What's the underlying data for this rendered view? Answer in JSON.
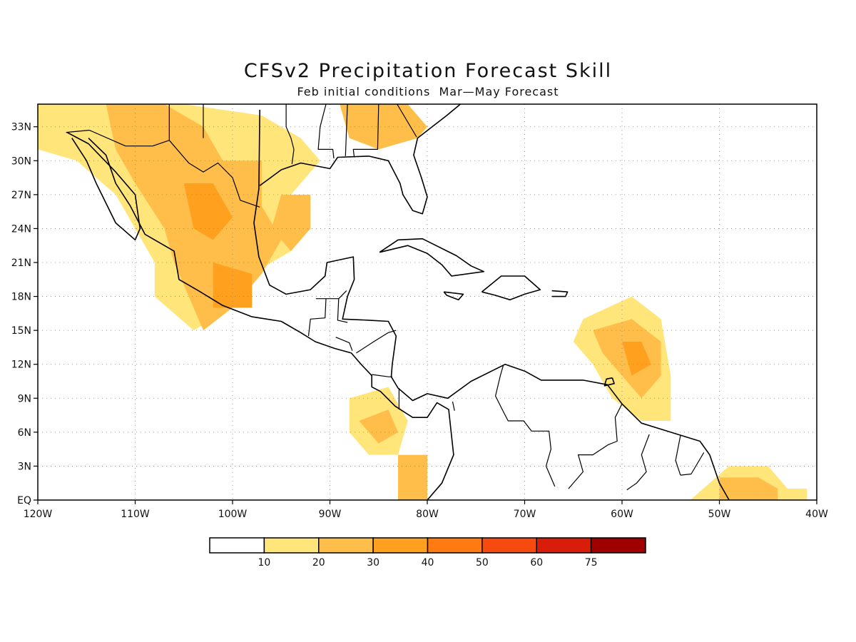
{
  "title": "CFSv2 Precipitation Forecast Skill",
  "subtitle": "Feb initial conditions  Mar—May Forecast",
  "axes": {
    "lat_labels": [
      "33N",
      "30N",
      "27N",
      "24N",
      "21N",
      "18N",
      "15N",
      "12N",
      "9N",
      "6N",
      "3N",
      "EQ"
    ],
    "lon_labels": [
      "120W",
      "110W",
      "100W",
      "90W",
      "80W",
      "70W",
      "60W",
      "50W",
      "40W"
    ]
  },
  "colorbar": {
    "labels": [
      "10",
      "20",
      "30",
      "40",
      "50",
      "60",
      "75"
    ],
    "colors": [
      "#ffffff",
      "#ffe57a",
      "#ffbe4a",
      "#ffa11f",
      "#ff7a10",
      "#f74a0e",
      "#d81e0a",
      "#a00000"
    ]
  },
  "chart_data": {
    "type": "map",
    "extent": {
      "lon": [
        -120,
        -40
      ],
      "lat": [
        0,
        35
      ]
    },
    "grid": true,
    "levels": [
      10,
      20,
      30,
      40,
      50,
      60,
      75
    ],
    "regions": [
      {
        "level": 10,
        "points": [
          [
            -120,
            35
          ],
          [
            -105,
            35
          ],
          [
            -97,
            34
          ],
          [
            -93,
            32
          ],
          [
            -91,
            30
          ],
          [
            -94,
            27
          ],
          [
            -92,
            25
          ],
          [
            -94,
            22
          ],
          [
            -100,
            19
          ],
          [
            -102,
            16
          ],
          [
            -104,
            15
          ],
          [
            -108,
            18
          ],
          [
            -108,
            21
          ],
          [
            -110,
            24
          ],
          [
            -112,
            27
          ],
          [
            -116,
            30
          ],
          [
            -120,
            31
          ]
        ]
      },
      {
        "level": 20,
        "points": [
          [
            -113,
            35
          ],
          [
            -107,
            35
          ],
          [
            -103,
            33
          ],
          [
            -101,
            30
          ],
          [
            -97,
            30
          ],
          [
            -97,
            26
          ],
          [
            -95,
            23
          ],
          [
            -97,
            20
          ],
          [
            -100,
            17
          ],
          [
            -103,
            15
          ],
          [
            -104,
            17
          ],
          [
            -106,
            21
          ],
          [
            -107,
            24
          ],
          [
            -110,
            28
          ],
          [
            -112,
            31
          ]
        ]
      },
      {
        "level": 20,
        "points": [
          [
            -95,
            27
          ],
          [
            -92,
            27
          ],
          [
            -92,
            24
          ],
          [
            -94,
            22
          ],
          [
            -96,
            24
          ]
        ]
      },
      {
        "level": 20,
        "points": [
          [
            -89,
            35
          ],
          [
            -82,
            35
          ],
          [
            -80,
            33
          ],
          [
            -81,
            32
          ],
          [
            -85,
            31
          ],
          [
            -88,
            32
          ]
        ]
      },
      {
        "level": 30,
        "points": [
          [
            -105,
            28
          ],
          [
            -102,
            28
          ],
          [
            -100,
            25
          ],
          [
            -102,
            23
          ],
          [
            -104,
            24
          ]
        ]
      },
      {
        "level": 30,
        "points": [
          [
            -102,
            21
          ],
          [
            -98,
            20
          ],
          [
            -98,
            17
          ],
          [
            -102,
            17
          ]
        ]
      },
      {
        "level": 10,
        "points": [
          [
            -64,
            16
          ],
          [
            -59,
            18
          ],
          [
            -56,
            16
          ],
          [
            -55,
            11
          ],
          [
            -55,
            7
          ],
          [
            -58,
            7
          ],
          [
            -61,
            9
          ],
          [
            -63,
            12
          ],
          [
            -65,
            14
          ]
        ]
      },
      {
        "level": 20,
        "points": [
          [
            -63,
            15
          ],
          [
            -59,
            16
          ],
          [
            -56,
            14
          ],
          [
            -56,
            11
          ],
          [
            -58,
            9
          ],
          [
            -60,
            11
          ],
          [
            -62,
            13
          ]
        ]
      },
      {
        "level": 30,
        "points": [
          [
            -60,
            14
          ],
          [
            -58,
            14
          ],
          [
            -57,
            12
          ],
          [
            -59,
            11
          ]
        ]
      },
      {
        "level": 10,
        "points": [
          [
            -88,
            9
          ],
          [
            -84,
            10
          ],
          [
            -82,
            7
          ],
          [
            -83,
            4
          ],
          [
            -86,
            4
          ],
          [
            -88,
            6
          ]
        ]
      },
      {
        "level": 20,
        "points": [
          [
            -87,
            7
          ],
          [
            -84,
            8
          ],
          [
            -83,
            6
          ],
          [
            -85,
            5
          ]
        ]
      },
      {
        "level": 10,
        "points": [
          [
            -53,
            0
          ],
          [
            -49,
            3
          ],
          [
            -45,
            3
          ],
          [
            -43,
            1
          ],
          [
            -41,
            1
          ],
          [
            -41,
            0
          ]
        ]
      },
      {
        "level": 20,
        "points": [
          [
            -50,
            2
          ],
          [
            -46,
            2
          ],
          [
            -44,
            1
          ],
          [
            -44,
            0
          ],
          [
            -50,
            0
          ]
        ]
      },
      {
        "level": 20,
        "points": [
          [
            -83,
            4
          ],
          [
            -80,
            4
          ],
          [
            -80,
            0
          ],
          [
            -83,
            0
          ]
        ]
      }
    ],
    "title": "CFSv2 Precipitation Forecast Skill",
    "subtitle": "Feb initial conditions  Mar—May Forecast",
    "xlabel": "",
    "ylabel": ""
  },
  "coastlines": [
    [
      [
        -117,
        32.5
      ],
      [
        -114.8,
        31.5
      ],
      [
        -112,
        29
      ],
      [
        -110,
        27
      ],
      [
        -109.5,
        24
      ],
      [
        -110,
        23
      ],
      [
        -112,
        24.5
      ],
      [
        -114,
        28
      ],
      [
        -115,
        30
      ],
      [
        -116.5,
        32
      ]
    ],
    [
      [
        -114.8,
        32
      ],
      [
        -113,
        30.5
      ],
      [
        -112,
        28
      ],
      [
        -110.5,
        26
      ],
      [
        -109,
        23.5
      ],
      [
        -106,
        22
      ],
      [
        -105.5,
        19.5
      ],
      [
        -103.5,
        18.5
      ],
      [
        -101,
        17.2
      ],
      [
        -98,
        16.2
      ],
      [
        -95,
        15.8
      ],
      [
        -93,
        14.8
      ],
      [
        -91.5,
        14
      ],
      [
        -89.5,
        13.4
      ],
      [
        -87.8,
        13
      ],
      [
        -86.8,
        12
      ],
      [
        -85.7,
        11
      ],
      [
        -85.7,
        10
      ],
      [
        -84.8,
        9.6
      ],
      [
        -83.3,
        8.3
      ],
      [
        -81.5,
        7.3
      ],
      [
        -80,
        7.3
      ],
      [
        -79,
        8.6
      ],
      [
        -77.8,
        8
      ],
      [
        -77.3,
        4
      ],
      [
        -78.5,
        1.5
      ],
      [
        -80,
        0
      ]
    ],
    [
      [
        -97.2,
        34.5
      ],
      [
        -97.3,
        27.5
      ],
      [
        -97.8,
        24.5
      ],
      [
        -97.3,
        21.5
      ],
      [
        -96.2,
        19
      ],
      [
        -94.5,
        18.2
      ],
      [
        -92,
        18.6
      ],
      [
        -90.5,
        19.8
      ],
      [
        -90.3,
        21
      ],
      [
        -87.6,
        21.5
      ],
      [
        -87.5,
        19.5
      ],
      [
        -88.2,
        18
      ],
      [
        -88.7,
        16
      ],
      [
        -86,
        15.9
      ],
      [
        -84,
        15.8
      ],
      [
        -83.2,
        14.5
      ],
      [
        -83.6,
        12
      ],
      [
        -83.7,
        10.9
      ],
      [
        -83,
        9.9
      ],
      [
        -81.5,
        8.8
      ],
      [
        -80,
        9.4
      ],
      [
        -77.9,
        9
      ],
      [
        -75.5,
        10.5
      ],
      [
        -72,
        12
      ],
      [
        -70,
        11.4
      ],
      [
        -68.3,
        10.6
      ],
      [
        -64,
        10.6
      ],
      [
        -61.5,
        10.2
      ],
      [
        -60,
        8.5
      ],
      [
        -58,
        6.8
      ],
      [
        -55,
        6
      ],
      [
        -52,
        5.2
      ],
      [
        -51,
        4
      ],
      [
        -50,
        1.5
      ],
      [
        -49,
        0
      ]
    ],
    [
      [
        -97.2,
        27.8
      ],
      [
        -95,
        29.2
      ],
      [
        -93,
        29.8
      ],
      [
        -90,
        29.3
      ],
      [
        -89.2,
        30.3
      ],
      [
        -86,
        30.4
      ],
      [
        -84,
        30
      ],
      [
        -82.8,
        28
      ],
      [
        -82.5,
        27
      ],
      [
        -81.5,
        25.6
      ],
      [
        -80.5,
        25.3
      ],
      [
        -80,
        26.8
      ],
      [
        -80.6,
        28.5
      ],
      [
        -81.4,
        30.5
      ],
      [
        -81,
        32
      ],
      [
        -79.5,
        33
      ],
      [
        -78,
        34
      ],
      [
        -76.6,
        35
      ]
    ],
    [
      [
        -84.9,
        21.9
      ],
      [
        -83,
        23
      ],
      [
        -80.5,
        23.1
      ],
      [
        -77,
        21.6
      ],
      [
        -75.5,
        20.7
      ],
      [
        -74.2,
        20.2
      ],
      [
        -77.5,
        19.8
      ],
      [
        -78.5,
        20.8
      ],
      [
        -80,
        21.8
      ],
      [
        -82,
        22.5
      ],
      [
        -84.9,
        21.9
      ]
    ],
    [
      [
        -74.4,
        18.4
      ],
      [
        -72.4,
        19.8
      ],
      [
        -70,
        19.8
      ],
      [
        -68.4,
        18.6
      ],
      [
        -70,
        18.2
      ],
      [
        -71.5,
        17.7
      ],
      [
        -73,
        18.1
      ],
      [
        -74.4,
        18.4
      ]
    ],
    [
      [
        -78.3,
        18.4
      ],
      [
        -76.3,
        18.2
      ],
      [
        -76.8,
        17.7
      ],
      [
        -78,
        18.1
      ],
      [
        -78.3,
        18.4
      ]
    ],
    [
      [
        -67.2,
        18.5
      ],
      [
        -65.6,
        18.4
      ],
      [
        -65.8,
        18
      ],
      [
        -67.2,
        18
      ]
    ],
    [
      [
        -61,
        10.8
      ],
      [
        -60.8,
        10.3
      ],
      [
        -61.8,
        10.1
      ],
      [
        -61.6,
        10.7
      ],
      [
        -61,
        10.8
      ]
    ]
  ],
  "borders": [
    [
      [
        -117.1,
        32.5
      ],
      [
        -114.7,
        32.7
      ],
      [
        -111,
        31.3
      ],
      [
        -108.2,
        31.3
      ],
      [
        -106.5,
        31.8
      ],
      [
        -104.5,
        29.8
      ],
      [
        -103,
        29
      ],
      [
        -101.5,
        29.8
      ],
      [
        -100,
        28.5
      ],
      [
        -99.2,
        26.5
      ],
      [
        -97.2,
        25.9
      ]
    ],
    [
      [
        -106.5,
        35
      ],
      [
        -106.5,
        31.8
      ]
    ],
    [
      [
        -103,
        35
      ],
      [
        -103,
        32
      ]
    ],
    [
      [
        -94.5,
        35
      ],
      [
        -94.5,
        33
      ],
      [
        -94,
        32
      ],
      [
        -93.7,
        31
      ],
      [
        -93.9,
        29.7
      ]
    ],
    [
      [
        -90.4,
        35
      ],
      [
        -91,
        33
      ],
      [
        -91.2,
        31
      ],
      [
        -89.7,
        31
      ],
      [
        -89.6,
        30.2
      ]
    ],
    [
      [
        -88.2,
        35
      ],
      [
        -88.4,
        30.4
      ]
    ],
    [
      [
        -85,
        35
      ],
      [
        -85.1,
        31
      ],
      [
        -87.6,
        31
      ],
      [
        -87.5,
        30.3
      ]
    ],
    [
      [
        -83.1,
        35
      ],
      [
        -81.1,
        32.1
      ]
    ],
    [
      [
        -92.2,
        14.5
      ],
      [
        -92,
        16
      ],
      [
        -90.5,
        16.1
      ],
      [
        -90.4,
        17.8
      ],
      [
        -91.4,
        17.8
      ],
      [
        -89.1,
        17.8
      ],
      [
        -88.3,
        18.5
      ]
    ],
    [
      [
        -89.1,
        17.8
      ],
      [
        -89.2,
        15.9
      ],
      [
        -88.2,
        15.7
      ]
    ],
    [
      [
        -89.4,
        14.4
      ],
      [
        -88,
        13.9
      ],
      [
        -87.7,
        13.2
      ]
    ],
    [
      [
        -87.3,
        13
      ],
      [
        -85.5,
        14
      ],
      [
        -84,
        14.8
      ],
      [
        -83.2,
        15
      ]
    ],
    [
      [
        -85.7,
        11.1
      ],
      [
        -84,
        10.9
      ],
      [
        -83.6,
        10.9
      ]
    ],
    [
      [
        -82.9,
        9.9
      ],
      [
        -82.9,
        8
      ]
    ],
    [
      [
        -77.4,
        8.7
      ],
      [
        -77.2,
        7.9
      ]
    ],
    [
      [
        -72.2,
        11.9
      ],
      [
        -72.5,
        11
      ],
      [
        -73,
        9.2
      ],
      [
        -72.3,
        8
      ],
      [
        -71.7,
        7
      ],
      [
        -70.1,
        7
      ],
      [
        -69.3,
        6.1
      ],
      [
        -67.5,
        6.1
      ],
      [
        -67.3,
        4.5
      ],
      [
        -67.8,
        3
      ],
      [
        -66.9,
        1.2
      ]
    ],
    [
      [
        -60,
        8.5
      ],
      [
        -60.7,
        7.3
      ],
      [
        -60.5,
        5.2
      ],
      [
        -61.4,
        4.9
      ],
      [
        -63,
        4
      ],
      [
        -64.5,
        4
      ],
      [
        -64,
        2.5
      ],
      [
        -65.5,
        1
      ]
    ],
    [
      [
        -57.2,
        5.8
      ],
      [
        -58,
        4
      ],
      [
        -57.5,
        2.5
      ],
      [
        -58.5,
        1.5
      ],
      [
        -59.5,
        0.9
      ]
    ],
    [
      [
        -54,
        5.7
      ],
      [
        -54.5,
        3.5
      ],
      [
        -54,
        2.2
      ]
    ],
    [
      [
        -51.6,
        4.2
      ],
      [
        -52.9,
        2.3
      ],
      [
        -54,
        2.2
      ]
    ]
  ]
}
